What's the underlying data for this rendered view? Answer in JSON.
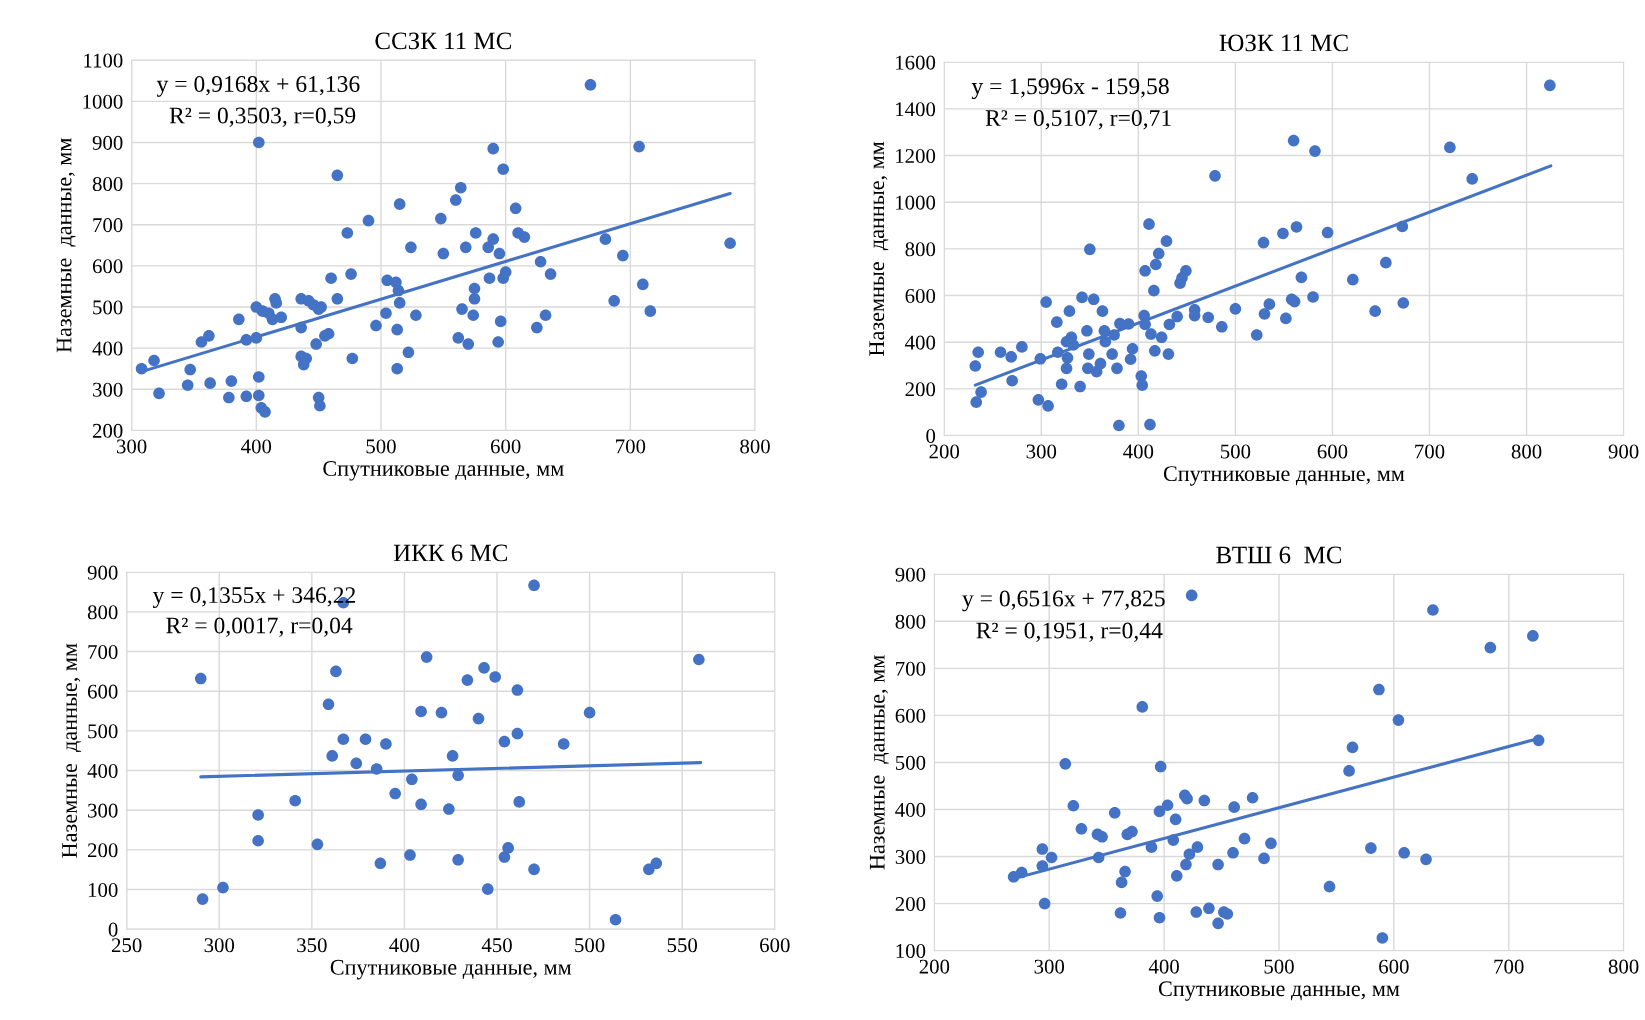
{
  "chart_data": [
    {
      "type": "scatter",
      "title": "ССЗК 11 МС",
      "xlabel": "Спутниковые данные, мм",
      "ylabel": "Наземные  данные, мм",
      "grid": true,
      "xlim": [
        300,
        800
      ],
      "ylim": [
        200,
        1100
      ],
      "xticks": [
        300,
        400,
        500,
        600,
        700,
        800
      ],
      "yticks": [
        200,
        300,
        400,
        500,
        600,
        700,
        800,
        900,
        1000,
        1100
      ],
      "annotations": [
        "y = 0,9168x + 61,136",
        "R² = 0,3503, r=0,59"
      ],
      "series": [
        {
          "marker": "circle",
          "color": "#4472c4",
          "x": [
            308,
            318,
            322,
            345,
            347,
            356,
            362,
            363,
            378,
            380,
            386,
            392,
            392,
            400,
            400,
            402,
            402,
            404,
            407,
            402,
            405,
            410,
            413,
            415,
            416,
            420,
            436,
            436,
            436,
            438,
            440,
            442,
            446,
            448,
            450,
            450,
            451,
            452,
            455,
            458,
            460,
            465,
            465,
            473,
            476,
            477,
            490,
            496,
            504,
            505,
            512,
            513,
            513,
            514,
            515,
            515,
            522,
            524,
            528,
            548,
            550,
            560,
            562,
            564,
            565,
            568,
            570,
            574,
            575,
            575,
            576,
            586,
            587,
            590,
            590,
            594,
            595,
            596,
            598,
            598,
            600,
            608,
            610,
            615,
            625,
            628,
            632,
            636,
            668,
            680,
            687,
            694,
            707,
            710,
            716,
            780
          ],
          "values": [
            350,
            370,
            290,
            310,
            348,
            415,
            430,
            315,
            280,
            320,
            470,
            283,
            420,
            425,
            500,
            330,
            285,
            255,
            245,
            900,
            490,
            485,
            470,
            520,
            510,
            475,
            450,
            520,
            380,
            360,
            375,
            515,
            505,
            410,
            495,
            280,
            260,
            500,
            430,
            435,
            570,
            520,
            820,
            680,
            580,
            375,
            710,
            455,
            485,
            565,
            560,
            350,
            445,
            540,
            510,
            750,
            390,
            645,
            480,
            715,
            630,
            760,
            425,
            790,
            495,
            645,
            410,
            480,
            520,
            545,
            680,
            645,
            570,
            885,
            665,
            415,
            630,
            465,
            835,
            570,
            585,
            740,
            680,
            670,
            450,
            610,
            480,
            580,
            1040,
            665,
            515,
            625,
            890,
            555,
            490,
            655
          ]
        },
        {
          "type": "line",
          "marker": "none",
          "color": "#4472c4",
          "x": [
            308,
            780
          ],
          "values": [
            343,
            776
          ]
        }
      ]
    },
    {
      "type": "scatter",
      "title": "ЮЗК 11 МС",
      "xlabel": "Спутниковые данные, мм",
      "ylabel": "Наземные  данные, мм",
      "grid": true,
      "xlim": [
        200,
        900
      ],
      "ylim": [
        0,
        1600
      ],
      "xticks": [
        200,
        300,
        400,
        500,
        600,
        700,
        800,
        900
      ],
      "yticks": [
        0,
        200,
        400,
        600,
        800,
        1000,
        1200,
        1400,
        1600
      ],
      "annotations": [
        "y = 1,5996x - 159,58",
        "R² = 0,5107, r=0,71"
      ],
      "series": [
        {
          "marker": "circle",
          "color": "#4472c4",
          "x": [
            232,
            235,
            238,
            233,
            258,
            269,
            270,
            280,
            299,
            297,
            307,
            305,
            316,
            317,
            321,
            329,
            326,
            327,
            326,
            331,
            333,
            340,
            342,
            354,
            347,
            350,
            349,
            348,
            357,
            361,
            363,
            365,
            366,
            373,
            378,
            375,
            381,
            380,
            390,
            392,
            394,
            403,
            404,
            406,
            407,
            407,
            416,
            411,
            412,
            413,
            417,
            418,
            421,
            424,
            429,
            431,
            432,
            440,
            443,
            445,
            449,
            458,
            458,
            472,
            486,
            500,
            522,
            529,
            530,
            535,
            549,
            552,
            558,
            561,
            563,
            560,
            568,
            580,
            582,
            595,
            621,
            644,
            655,
            672,
            673,
            721,
            744,
            824,
            479
          ],
          "values": [
            298,
            357,
            186,
            143,
            357,
            337,
            235,
            380,
            329,
            153,
            127,
            572,
            486,
            357,
            220,
            533,
            402,
            333,
            288,
            421,
            388,
            210,
            592,
            584,
            449,
            798,
            349,
            288,
            274,
            308,
            533,
            449,
            402,
            349,
            288,
            431,
            480,
            43,
            478,
            327,
            372,
            255,
            216,
            514,
            476,
            706,
            621,
            906,
            47,
            435,
            363,
            733,
            780,
            421,
            833,
            349,
            476,
            510,
            653,
            676,
            706,
            514,
            539,
            506,
            466,
            543,
            431,
            827,
            521,
            563,
            866,
            502,
            584,
            574,
            894,
            1264,
            678,
            594,
            1219,
            870,
            668,
            533,
            741,
            896,
            568,
            1235,
            1100,
            1501,
            1113
          ]
        },
        {
          "type": "line",
          "marker": "none",
          "color": "#4472c4",
          "x": [
            232,
            825
          ],
          "values": [
            216,
            1156
          ]
        }
      ]
    },
    {
      "type": "scatter",
      "title": "ИКК 6 МС",
      "xlabel": "Спутниковые данные, мм",
      "ylabel": "Наземные  данные, мм",
      "grid": true,
      "xlim": [
        250,
        600
      ],
      "ylim": [
        0,
        900
      ],
      "xticks": [
        250,
        300,
        350,
        400,
        450,
        500,
        550,
        600
      ],
      "yticks": [
        0,
        100,
        200,
        300,
        400,
        500,
        600,
        700,
        800,
        900
      ],
      "annotations": [
        "y = 0,1355x + 346,22",
        "R² = 0,0017, r=0,04"
      ],
      "series": [
        {
          "marker": "circle",
          "color": "#4472c4",
          "x": [
            290,
            291,
            302,
            321,
            321,
            341,
            353,
            359,
            363,
            361,
            367,
            367,
            374,
            379,
            385,
            387,
            390,
            395,
            403,
            404,
            409,
            409,
            412,
            420,
            424,
            426,
            429,
            429,
            434,
            440,
            443,
            445,
            449,
            454,
            454,
            456,
            461,
            461,
            462,
            470,
            470,
            486,
            500,
            514,
            532,
            536,
            559
          ],
          "values": [
            632,
            76,
            105,
            288,
            223,
            324,
            214,
            567,
            650,
            437,
            823,
            479,
            418,
            479,
            404,
            166,
            467,
            342,
            187,
            378,
            549,
            315,
            686,
            546,
            303,
            437,
            388,
            175,
            628,
            531,
            659,
            101,
            636,
            473,
            182,
            205,
            493,
            603,
            321,
            867,
            151,
            467,
            546,
            24,
            151,
            166,
            680
          ]
        },
        {
          "type": "line",
          "marker": "none",
          "color": "#4472c4",
          "x": [
            290,
            560
          ],
          "values": [
            384,
            420
          ]
        }
      ]
    },
    {
      "type": "scatter",
      "title": "ВТШ 6  МС",
      "xlabel": "Спутниковые данные, мм",
      "ylabel": "Наземные  данные, мм",
      "grid": true,
      "xlim": [
        200,
        800
      ],
      "ylim": [
        100,
        900
      ],
      "xticks": [
        200,
        300,
        400,
        500,
        600,
        700,
        800
      ],
      "yticks": [
        100,
        200,
        300,
        400,
        500,
        600,
        700,
        800,
        900
      ],
      "annotations": [
        "y = 0,6516x + 77,825",
        "R² = 0,1951, r=0,44"
      ],
      "series": [
        {
          "marker": "circle",
          "color": "#4472c4",
          "x": [
            269,
            276,
            294,
            294,
            296,
            302,
            314,
            321,
            328,
            342,
            346,
            343,
            357,
            362,
            363,
            366,
            368,
            372,
            381,
            389,
            394,
            396,
            397,
            396,
            403,
            408,
            410,
            411,
            418,
            420,
            419,
            422,
            424,
            428,
            429,
            435,
            439,
            447,
            447,
            452,
            455,
            460,
            461,
            470,
            477,
            487,
            493,
            544,
            561,
            564,
            580,
            587,
            590,
            604,
            609,
            628,
            634,
            684,
            721,
            726
          ],
          "values": [
            257,
            266,
            280,
            316,
            200,
            298,
            497,
            408,
            359,
            347,
            342,
            298,
            393,
            180,
            245,
            268,
            347,
            353,
            618,
            320,
            216,
            170,
            491,
            396,
            409,
            335,
            379,
            259,
            430,
            423,
            283,
            305,
            855,
            182,
            320,
            419,
            190,
            283,
            158,
            182,
            178,
            308,
            405,
            338,
            425,
            296,
            328,
            236,
            482,
            532,
            318,
            655,
            127,
            590,
            308,
            294,
            824,
            744,
            769,
            547
          ]
        },
        {
          "type": "line",
          "marker": "none",
          "color": "#4472c4",
          "x": [
            269,
            726
          ],
          "values": [
            253,
            551
          ]
        }
      ]
    }
  ]
}
